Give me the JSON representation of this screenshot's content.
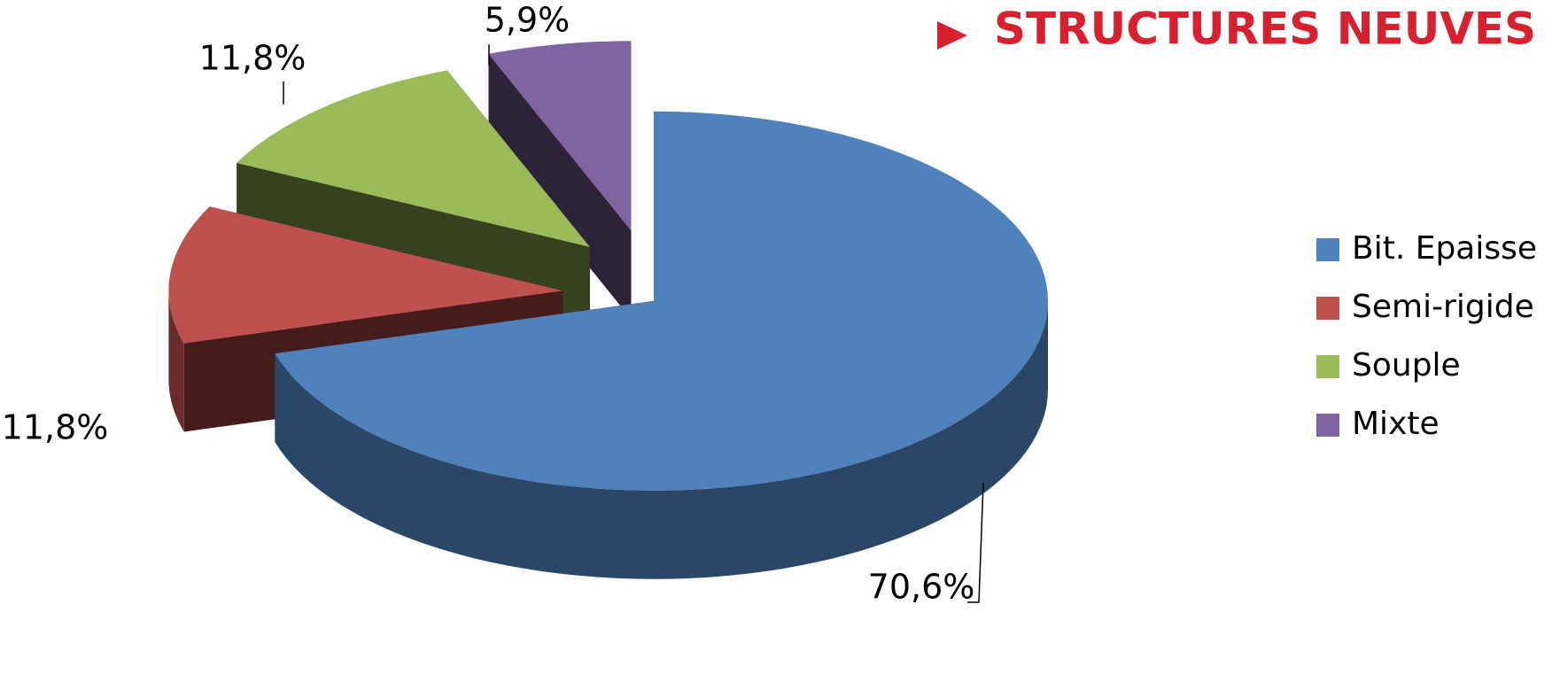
{
  "chart_data": {
    "type": "pie3d",
    "title": "STRUCTURES NEUVES",
    "categories": [
      "Bit. Epaisse",
      "Semi-rigide",
      "Souple",
      "Mixte"
    ],
    "values": [
      70.6,
      11.8,
      11.8,
      5.9
    ],
    "value_labels": [
      "70,6%",
      "11,8%",
      "11,8%",
      "5,9%"
    ],
    "colors": [
      "#4f81bd",
      "#c0504d",
      "#9bbb59",
      "#8064a2"
    ],
    "legend": "right"
  }
}
